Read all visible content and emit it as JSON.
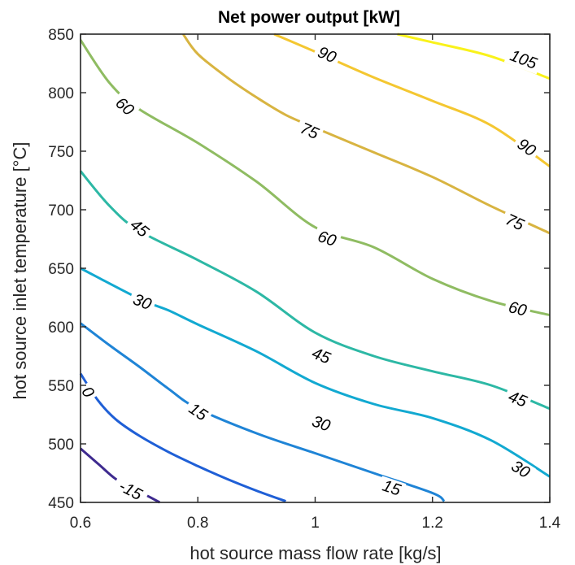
{
  "chart_data": {
    "type": "contour",
    "title": "Net power output [kW]",
    "xlabel": "hot source mass flow rate [kg/s]",
    "ylabel": "hot source inlet temperature [°C]",
    "xlim": [
      0.6,
      1.4
    ],
    "ylim": [
      450,
      850
    ],
    "xticks": [
      0.6,
      0.8,
      1.0,
      1.2,
      1.4
    ],
    "xtick_labels": [
      "0.6",
      "0.8",
      "1",
      "1.2",
      "1.4"
    ],
    "yticks": [
      450,
      500,
      550,
      600,
      650,
      700,
      750,
      800,
      850
    ],
    "ytick_labels": [
      "450",
      "500",
      "550",
      "600",
      "650",
      "700",
      "750",
      "800",
      "850"
    ],
    "grid": false,
    "contours": [
      {
        "level": -15,
        "color": "#3e2a8f",
        "points": [
          [
            0.6,
            496
          ],
          [
            0.63,
            483
          ],
          [
            0.66,
            470
          ],
          [
            0.69,
            462
          ],
          [
            0.72,
            454
          ],
          [
            0.735,
            450
          ]
        ],
        "labels": [
          {
            "text": "-15",
            "x": 0.685,
            "y": 460
          }
        ]
      },
      {
        "level": 0,
        "color": "#1f5fd6",
        "points": [
          [
            0.6,
            560
          ],
          [
            0.63,
            537
          ],
          [
            0.66,
            521
          ],
          [
            0.7,
            507
          ],
          [
            0.75,
            493
          ],
          [
            0.8,
            481
          ],
          [
            0.85,
            470
          ],
          [
            0.9,
            460
          ],
          [
            0.95,
            451
          ]
        ],
        "labels": [
          {
            "text": "0",
            "x": 0.612,
            "y": 544
          }
        ]
      },
      {
        "level": 15,
        "color": "#1f84d6",
        "points": [
          [
            0.6,
            603
          ],
          [
            0.65,
            584
          ],
          [
            0.7,
            566
          ],
          [
            0.75,
            547
          ],
          [
            0.8,
            530
          ],
          [
            0.9,
            509
          ],
          [
            1.0,
            492
          ],
          [
            1.1,
            475
          ],
          [
            1.2,
            458
          ],
          [
            1.22,
            451
          ]
        ],
        "labels": [
          {
            "text": "15",
            "x": 0.8,
            "y": 527
          },
          {
            "text": "15",
            "x": 1.13,
            "y": 462
          }
        ]
      },
      {
        "level": 30,
        "color": "#12a9d1",
        "points": [
          [
            0.6,
            650
          ],
          [
            0.7,
            624
          ],
          [
            0.75,
            614
          ],
          [
            0.8,
            602
          ],
          [
            0.9,
            579
          ],
          [
            1.0,
            552
          ],
          [
            1.1,
            534
          ],
          [
            1.2,
            522
          ],
          [
            1.3,
            503
          ],
          [
            1.4,
            472
          ]
        ],
        "labels": [
          {
            "text": "30",
            "x": 0.705,
            "y": 621
          },
          {
            "text": "30",
            "x": 1.01,
            "y": 517
          },
          {
            "text": "30",
            "x": 1.35,
            "y": 478
          }
        ]
      },
      {
        "level": 45,
        "color": "#2db8a5",
        "points": [
          [
            0.6,
            733
          ],
          [
            0.65,
            703
          ],
          [
            0.7,
            682
          ],
          [
            0.8,
            657
          ],
          [
            0.9,
            630
          ],
          [
            1.0,
            595
          ],
          [
            1.1,
            575
          ],
          [
            1.2,
            562
          ],
          [
            1.3,
            550
          ],
          [
            1.4,
            530
          ]
        ],
        "labels": [
          {
            "text": "45",
            "x": 0.7,
            "y": 684
          },
          {
            "text": "45",
            "x": 1.01,
            "y": 575
          },
          {
            "text": "45",
            "x": 1.345,
            "y": 538
          }
        ]
      },
      {
        "level": 60,
        "color": "#8fbc62",
        "points": [
          [
            0.6,
            845
          ],
          [
            0.65,
            808
          ],
          [
            0.7,
            786
          ],
          [
            0.8,
            757
          ],
          [
            0.9,
            724
          ],
          [
            1.0,
            685
          ],
          [
            1.1,
            668
          ],
          [
            1.2,
            641
          ],
          [
            1.3,
            622
          ],
          [
            1.4,
            610
          ]
        ],
        "labels": [
          {
            "text": "60",
            "x": 0.675,
            "y": 788
          },
          {
            "text": "60",
            "x": 1.02,
            "y": 675
          },
          {
            "text": "60",
            "x": 1.345,
            "y": 615
          }
        ]
      },
      {
        "level": 75,
        "color": "#d8b441",
        "points": [
          [
            0.775,
            850
          ],
          [
            0.8,
            833
          ],
          [
            0.85,
            813
          ],
          [
            0.9,
            796
          ],
          [
            0.95,
            781
          ],
          [
            1.0,
            770
          ],
          [
            1.1,
            749
          ],
          [
            1.2,
            728
          ],
          [
            1.3,
            703
          ],
          [
            1.4,
            680
          ]
        ],
        "labels": [
          {
            "text": "75",
            "x": 0.99,
            "y": 767
          },
          {
            "text": "75",
            "x": 1.34,
            "y": 689
          }
        ]
      },
      {
        "level": 90,
        "color": "#f4c731",
        "points": [
          [
            0.93,
            850
          ],
          [
            1.0,
            835
          ],
          [
            1.1,
            813
          ],
          [
            1.2,
            793
          ],
          [
            1.3,
            772
          ],
          [
            1.4,
            737
          ]
        ],
        "labels": [
          {
            "text": "90",
            "x": 1.02,
            "y": 832
          },
          {
            "text": "90",
            "x": 1.36,
            "y": 753
          }
        ]
      },
      {
        "level": 105,
        "color": "#f9f21b",
        "points": [
          [
            1.14,
            850
          ],
          [
            1.2,
            843
          ],
          [
            1.3,
            831
          ],
          [
            1.4,
            812
          ]
        ],
        "labels": [
          {
            "text": "105",
            "x": 1.355,
            "y": 828
          }
        ]
      }
    ]
  }
}
